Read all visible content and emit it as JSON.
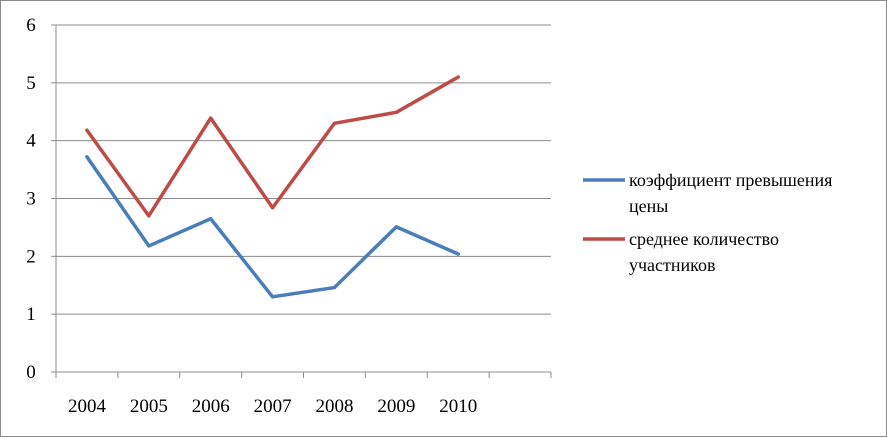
{
  "chart_data": {
    "type": "line",
    "title": "",
    "xlabel": "",
    "ylabel": "",
    "categories": [
      "2004",
      "2005",
      "2006",
      "2007",
      "2008",
      "2009",
      "2010"
    ],
    "ylim": [
      0,
      6
    ],
    "yticks": [
      "0",
      "1",
      "2",
      "3",
      "4",
      "5",
      "6"
    ],
    "grid": "horizontal",
    "legend": "right",
    "series": [
      {
        "name_lines": [
          "коэффициент превышения",
          "цены"
        ],
        "color": "#4a7ebb",
        "values": [
          3.72,
          2.18,
          2.65,
          1.3,
          1.46,
          2.51,
          2.04
        ]
      },
      {
        "name_lines": [
          "среднее количество",
          "участников"
        ],
        "color": "#be4b48",
        "values": [
          4.18,
          2.7,
          4.39,
          2.84,
          4.3,
          4.49,
          5.1
        ]
      }
    ]
  }
}
